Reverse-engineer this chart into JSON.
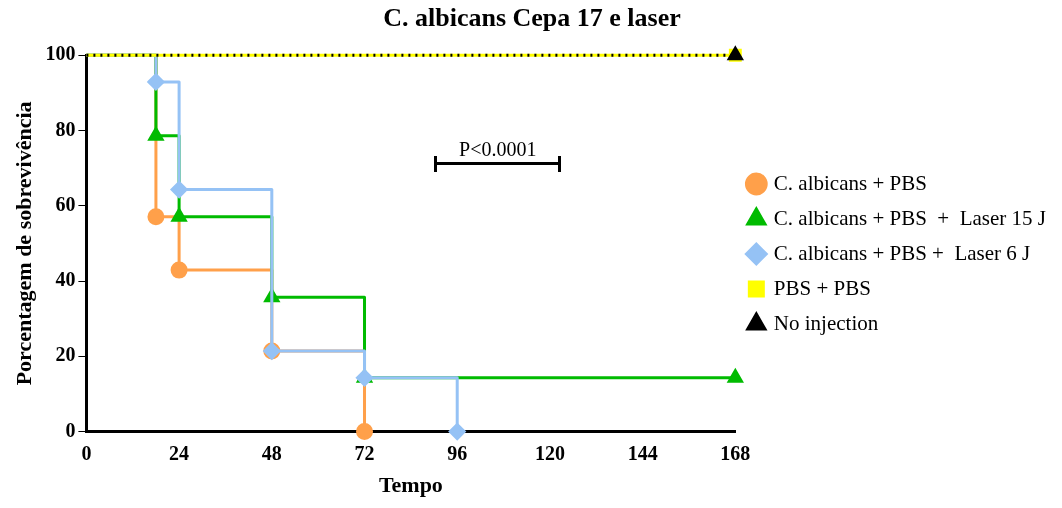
{
  "chart_data": {
    "type": "step",
    "title": "C. albicans Cepa 17 e laser",
    "xlabel": "Tempo",
    "ylabel": "Porcentagem de sobrevivência",
    "xlim": [
      0,
      168
    ],
    "xticks": [
      0,
      24,
      48,
      72,
      96,
      120,
      144,
      168
    ],
    "ylim": [
      0,
      100
    ],
    "yticks": [
      0,
      20,
      40,
      60,
      80,
      100
    ],
    "grid": false,
    "legend": "right",
    "annotations": [
      "P<0.0001"
    ],
    "series": [
      {
        "name": "C. albicans + PBS",
        "color": "#ffa04a",
        "marker": "circle",
        "x": [
          0,
          18,
          24,
          48,
          72
        ],
        "values": [
          100,
          57.1,
          42.9,
          21.4,
          0
        ]
      },
      {
        "name": "C. albicans + PBS  +  Laser 15 J",
        "color": "#00bb00",
        "marker": "triangle",
        "x": [
          0,
          18,
          24,
          48,
          72,
          168
        ],
        "values": [
          100,
          78.6,
          57.1,
          35.7,
          14.3,
          14.3
        ]
      },
      {
        "name": "C. albicans + PBS +  Laser 6 J",
        "color": "#95c2f5",
        "marker": "diamond",
        "x": [
          0,
          18,
          24,
          48,
          72,
          96
        ],
        "values": [
          100,
          92.9,
          64.3,
          21.4,
          14.3,
          0
        ]
      },
      {
        "name": "PBS + PBS",
        "color": "#ffff00",
        "marker": "square",
        "x": [
          0,
          168
        ],
        "values": [
          100,
          100
        ]
      },
      {
        "name": "No injection",
        "color": "#000000",
        "marker": "triangle",
        "line_style": "dotted",
        "x": [
          0,
          168
        ],
        "values": [
          100,
          100
        ]
      }
    ]
  }
}
